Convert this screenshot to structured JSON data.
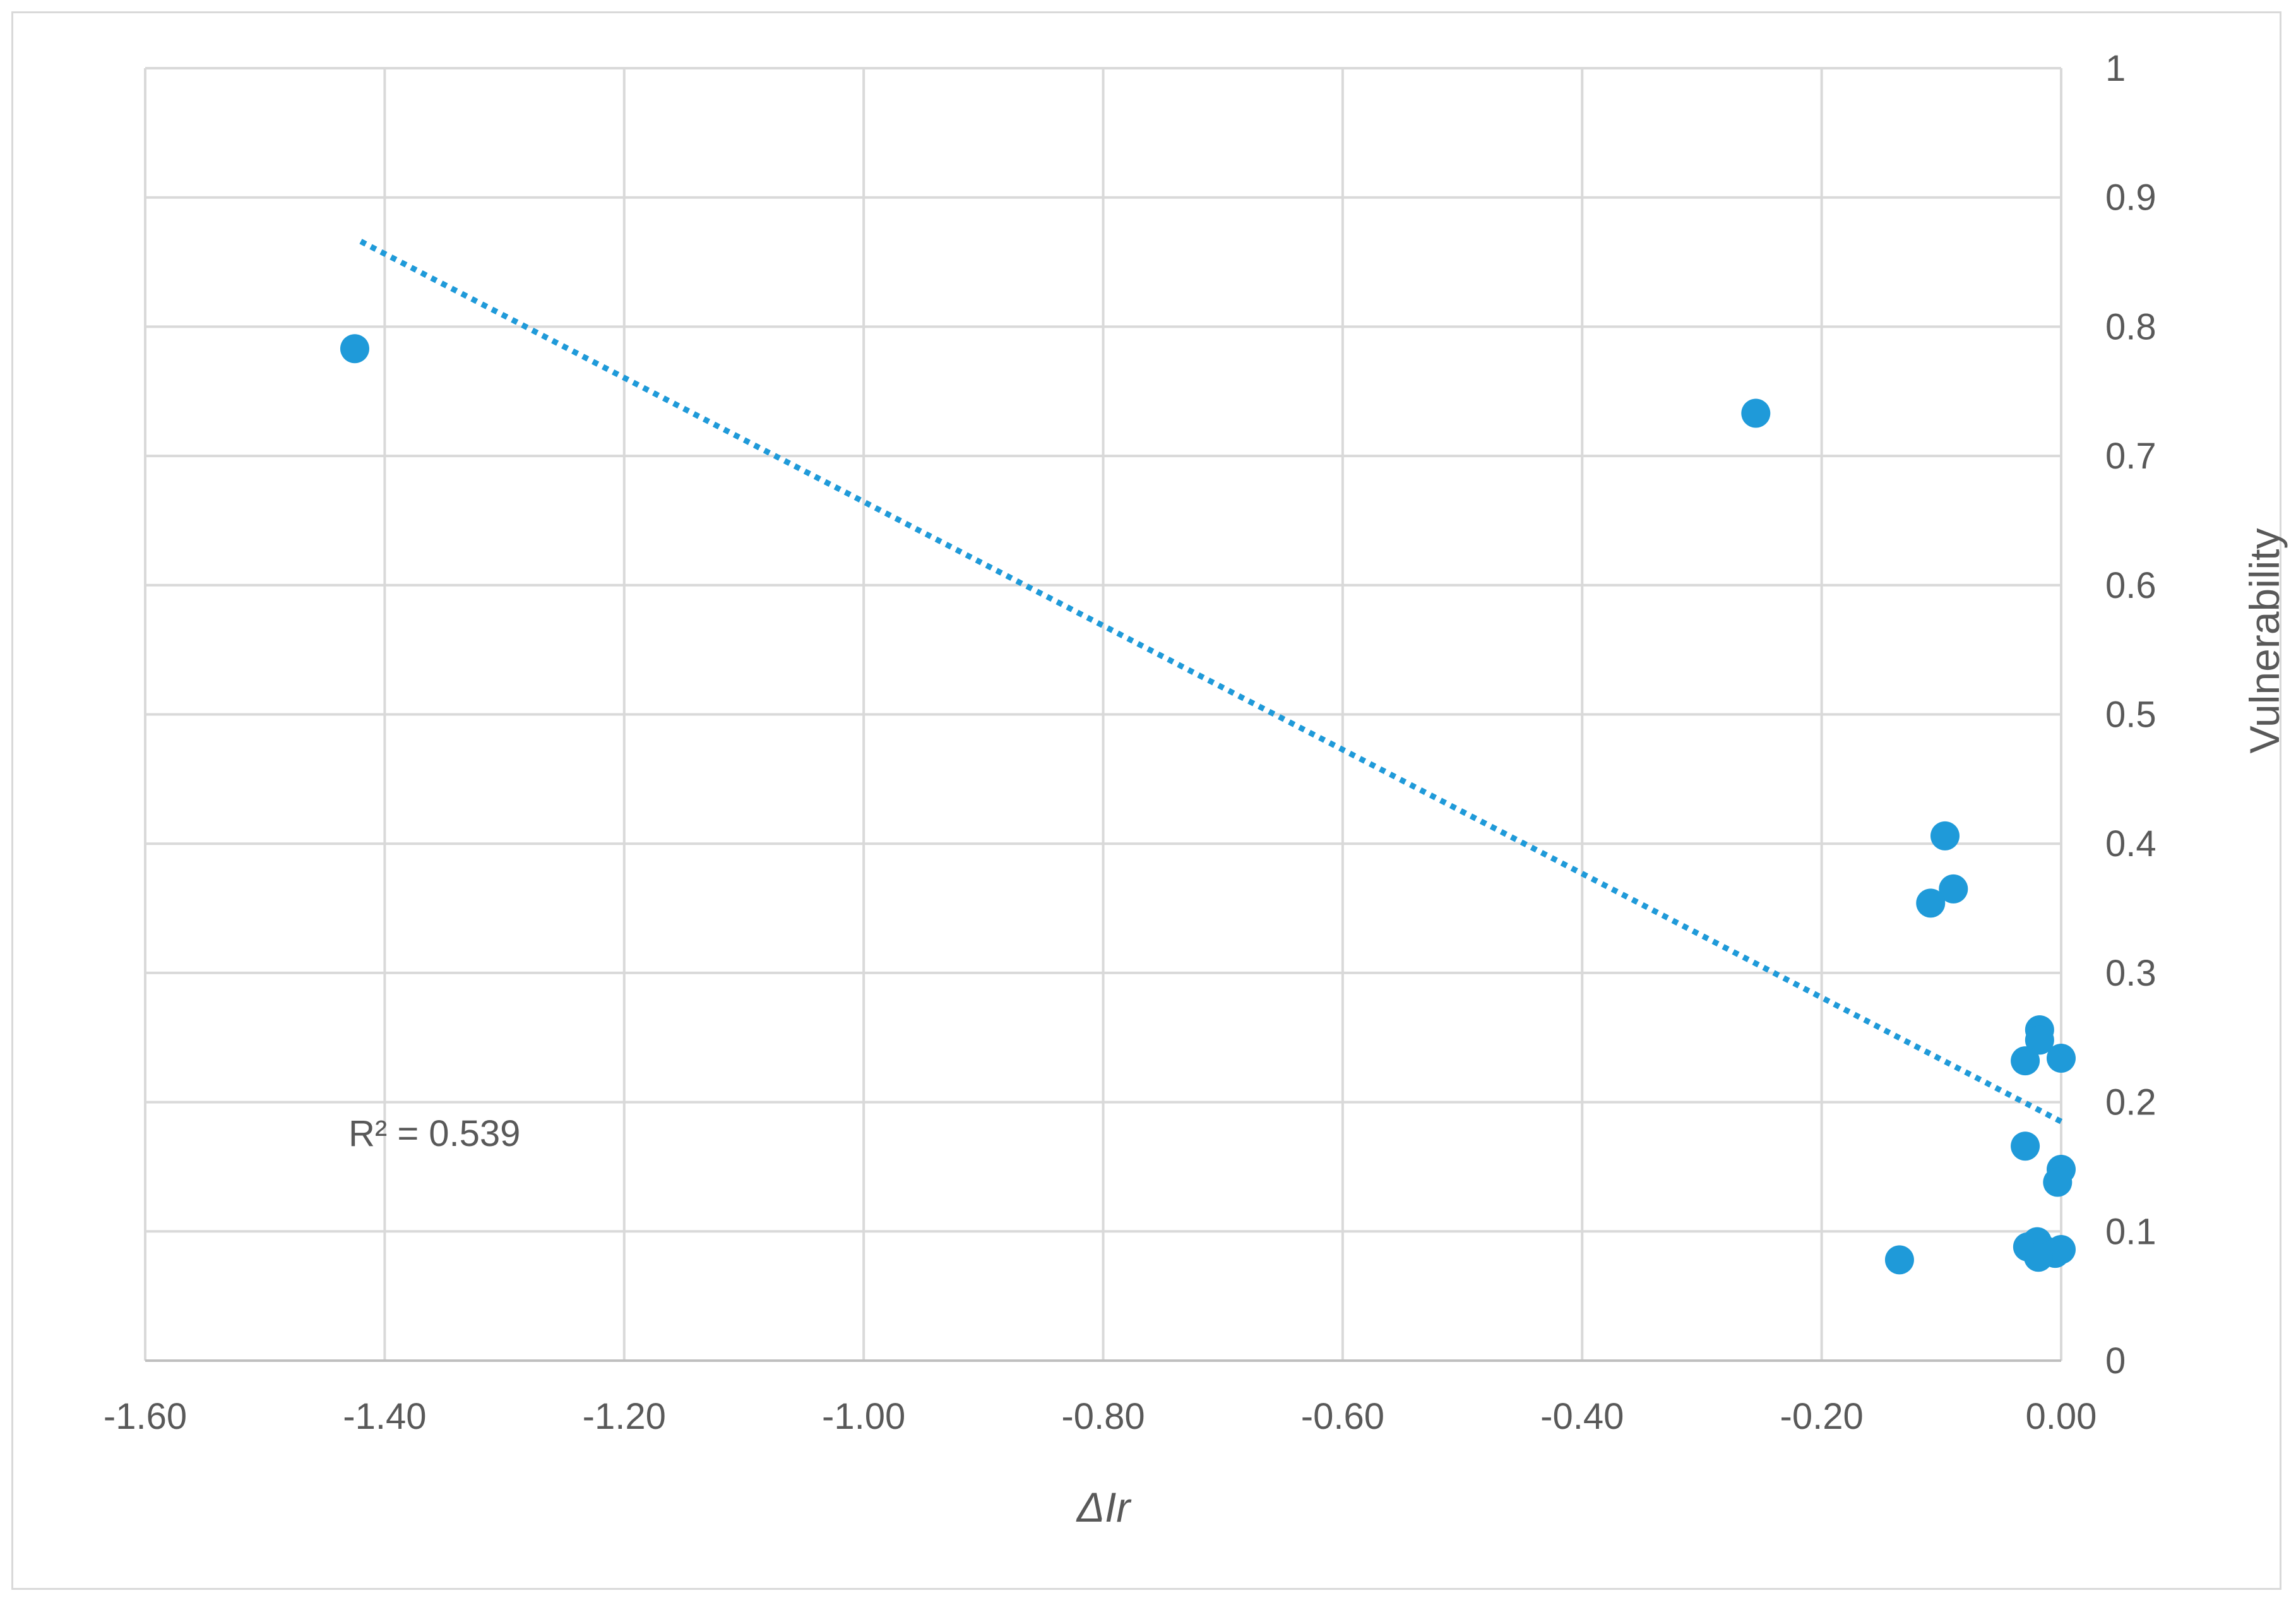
{
  "chart_data": {
    "type": "scatter",
    "title": "",
    "xlabel": "ΔIr",
    "ylabel": "Vulnerability",
    "xlim": [
      -1.6,
      0.0
    ],
    "ylim": [
      0,
      1
    ],
    "x_ticks": [
      "-1.60",
      "-1.40",
      "-1.20",
      "-1.00",
      "-0.80",
      "-0.60",
      "-0.40",
      "-0.20",
      "0.00"
    ],
    "y_ticks": [
      "0",
      "0.1",
      "0.2",
      "0.3",
      "0.4",
      "0.5",
      "0.6",
      "0.7",
      "0.8",
      "0.9",
      "1"
    ],
    "y_axis_position": "right",
    "grid": true,
    "point_color": "#1f9ad9",
    "trendline_color": "#1f9ad9",
    "gridline_color": "#d9d9d9",
    "points": [
      {
        "x": -1.425,
        "y": 0.783
      },
      {
        "x": -0.255,
        "y": 0.733
      },
      {
        "x": -0.097,
        "y": 0.406
      },
      {
        "x": -0.09,
        "y": 0.365
      },
      {
        "x": -0.109,
        "y": 0.354
      },
      {
        "x": -0.018,
        "y": 0.256
      },
      {
        "x": -0.018,
        "y": 0.248
      },
      {
        "x": -0.03,
        "y": 0.232
      },
      {
        "x": 0.0,
        "y": 0.234
      },
      {
        "x": -0.03,
        "y": 0.166
      },
      {
        "x": 0.0,
        "y": 0.148
      },
      {
        "x": -0.003,
        "y": 0.138
      },
      {
        "x": -0.02,
        "y": 0.092
      },
      {
        "x": -0.028,
        "y": 0.088
      },
      {
        "x": -0.013,
        "y": 0.085
      },
      {
        "x": -0.005,
        "y": 0.083
      },
      {
        "x": 0.0,
        "y": 0.086
      },
      {
        "x": -0.019,
        "y": 0.08
      },
      {
        "x": -0.135,
        "y": 0.078
      }
    ],
    "trendline": {
      "type": "linear",
      "style": "dotted",
      "x": [
        -1.42,
        0.0
      ],
      "y": [
        0.866,
        0.185
      ]
    },
    "annotations": [
      {
        "text": "R² = 0.539"
      }
    ]
  }
}
